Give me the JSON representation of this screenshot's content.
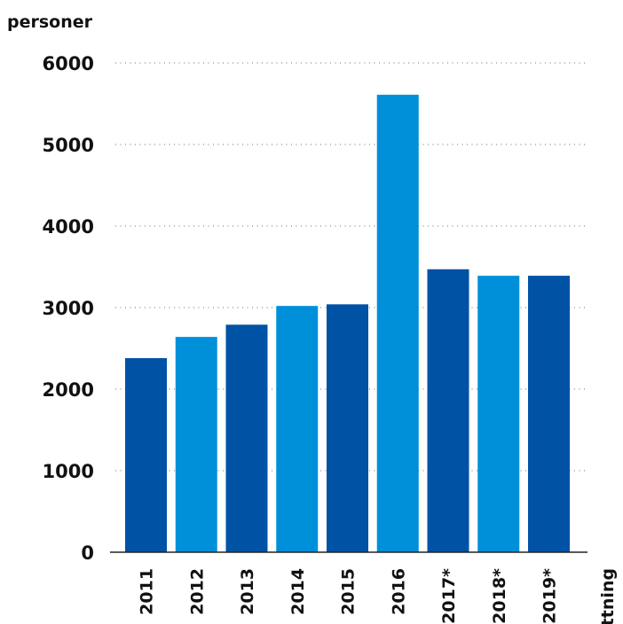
{
  "chart_data": {
    "type": "bar",
    "ylabel": "personer",
    "xlabel": "ttning",
    "categories": [
      "2011",
      "2012",
      "2013",
      "2014",
      "2015",
      "2016",
      "2017*",
      "2018*",
      "2019*"
    ],
    "values": [
      2380,
      2640,
      2790,
      3020,
      3040,
      5610,
      3470,
      3390,
      3390
    ],
    "ylim": [
      0,
      6000
    ],
    "yticks": [
      "0",
      "1000",
      "2000",
      "3000",
      "4000",
      "5000",
      "6000"
    ],
    "grid": true,
    "colors": {
      "dark": "#0052a5",
      "light": "#0090da",
      "pattern": [
        "dark",
        "light",
        "dark",
        "light",
        "dark",
        "light",
        "dark",
        "light",
        "dark"
      ]
    }
  }
}
